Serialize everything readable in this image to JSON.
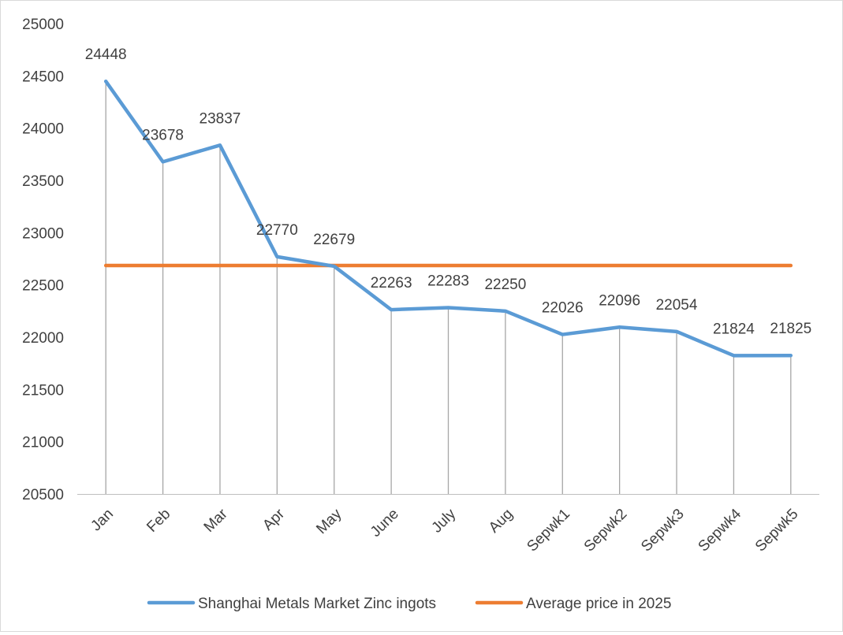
{
  "chart_data": {
    "type": "line",
    "title": "",
    "xlabel": "",
    "ylabel": "",
    "categories": [
      "Jan",
      "Feb",
      "Mar",
      "Apr",
      "May",
      "June",
      "July",
      "Aug",
      "Sepwk1",
      "Sepwk2",
      "Sepwk3",
      "Sepwk4",
      "Sepwk5"
    ],
    "ylim": [
      20500,
      25000
    ],
    "yticks": [
      20500,
      21000,
      21500,
      22000,
      22500,
      23000,
      23500,
      24000,
      24500,
      25000
    ],
    "grid": false,
    "drop_lines": true,
    "legend_position": "bottom",
    "series": [
      {
        "name": "Shanghai Metals Market Zinc ingots",
        "color": "#5b9bd5",
        "values": [
          24448,
          23678,
          23837,
          22770,
          22679,
          22263,
          22283,
          22250,
          22026,
          22096,
          22054,
          21824,
          21825
        ],
        "data_labels": true
      },
      {
        "name": "Average price in 2025",
        "color": "#ed7d31",
        "values": [
          22686,
          22686,
          22686,
          22686,
          22686,
          22686,
          22686,
          22686,
          22686,
          22686,
          22686,
          22686,
          22686
        ],
        "data_labels": false
      }
    ]
  }
}
